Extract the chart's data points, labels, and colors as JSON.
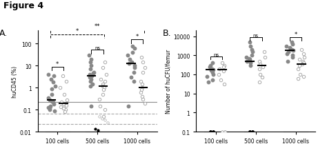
{
  "figure_title": "Figure 4",
  "panel_A": {
    "label": "A.",
    "ylabel": "huCD45 (%)",
    "xlabel_groups": [
      "100 cells",
      "500 cells",
      "1000 cells"
    ],
    "ylim_log": [
      0.01,
      400
    ],
    "hline_solid": 0.22,
    "hline_dashed_upper": 0.065,
    "hline_dashed_lower": 0.022,
    "yticks": [
      0.01,
      0.1,
      1,
      10,
      100
    ],
    "ytick_labels": [
      "0.01",
      "0.1",
      "1",
      "10",
      "100"
    ],
    "groups": {
      "100_filled": [
        4.0,
        3.5,
        2.5,
        1.8,
        1.2,
        0.9,
        0.5,
        0.35,
        0.28,
        0.24,
        0.22,
        0.18,
        0.15,
        0.13,
        0.1,
        0.09,
        0.12
      ],
      "100_open": [
        3.5,
        2.0,
        1.0,
        0.5,
        0.28,
        0.22,
        0.18,
        0.16,
        0.14,
        0.12,
        0.1,
        0.08,
        0.12
      ],
      "100_median_filled": 0.28,
      "100_median_open": 0.2,
      "500_filled": [
        30,
        20,
        15,
        10,
        7,
        5,
        4.5,
        4,
        3.5,
        3.0,
        2.5,
        2.0,
        1.5,
        1.2,
        0.15
      ],
      "500_open": [
        15,
        8,
        4,
        2.5,
        2.0,
        1.5,
        1.2,
        1.0,
        0.8,
        0.5,
        0.3,
        0.15,
        0.1,
        0.05
      ],
      "500_median_filled": 3.5,
      "500_median_open": 1.2,
      "1000_filled": [
        80,
        60,
        40,
        30,
        20,
        15,
        13,
        10,
        8,
        5,
        3,
        2,
        0.15
      ],
      "1000_open": [
        25,
        15,
        8,
        5,
        2,
        1.5,
        1.0,
        0.8,
        0.6,
        0.4,
        0.3,
        0.2
      ],
      "1000_median_filled": 13,
      "1000_median_open": 1.0
    },
    "below_axis_filled": [
      0.013,
      0.012
    ],
    "below_axis_open": [
      0.05,
      0.04,
      0.035,
      0.025
    ],
    "sig_100": "*",
    "sig_500": "ns",
    "sig_1000": "*",
    "sig_100_500_dashed": "*",
    "sig_100_1000_dashed": "**"
  },
  "panel_B": {
    "label": "B.",
    "ylabel": "Number of huCFU/femur",
    "xlabel_groups": [
      "100 cells",
      "500 cells",
      "1000 cells"
    ],
    "ylim_log": [
      0.1,
      20000
    ],
    "yticks": [
      0.1,
      1,
      10,
      100,
      1000,
      10000
    ],
    "ytick_labels": [
      "0.1",
      "1",
      "10",
      "100",
      "1000",
      "10000"
    ],
    "groups": {
      "100_filled": [
        400,
        300,
        250,
        200,
        180,
        160,
        130,
        100,
        80,
        50,
        40
      ],
      "100_open": [
        400,
        300,
        250,
        200,
        150,
        100,
        50,
        30
      ],
      "100_median_filled": 180,
      "100_median_open": 175,
      "500_filled": [
        5000,
        3000,
        2000,
        1500,
        1000,
        800,
        700,
        600,
        500,
        400,
        300
      ],
      "500_open": [
        1500,
        800,
        500,
        350,
        250,
        200,
        100,
        70,
        40
      ],
      "500_median_filled": 500,
      "500_median_open": 300,
      "1000_filled": [
        5000,
        4000,
        3000,
        2500,
        2000,
        1800,
        1500,
        1200,
        1000,
        800,
        500
      ],
      "1000_open": [
        2000,
        1200,
        800,
        600,
        500,
        400,
        350,
        300,
        200,
        100,
        80,
        60
      ],
      "1000_median_filled": 1800,
      "1000_median_open": 350
    },
    "bottom_filled": {
      "100": 2,
      "500": 2
    },
    "bottom_open": {
      "100": 2
    },
    "sig_100": "ns",
    "sig_500": "ns",
    "sig_1000": "*"
  },
  "filled_color": "#888888",
  "open_facecolor": "#ffffff",
  "open_edgecolor": "#aaaaaa",
  "median_color": "#000000",
  "background_color": "#ffffff",
  "marker_size": 3.2,
  "median_lw": 1.5
}
